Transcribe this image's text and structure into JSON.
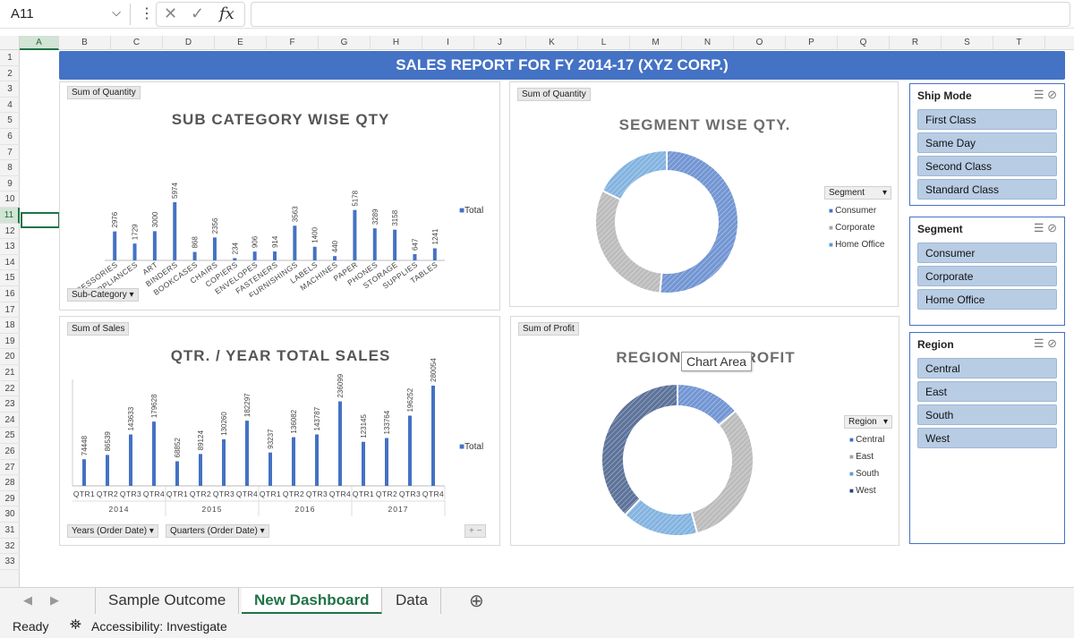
{
  "formula_bar": {
    "name_box": "A11",
    "fx": "fx",
    "formula": ""
  },
  "columns": [
    "A",
    "B",
    "C",
    "D",
    "E",
    "F",
    "G",
    "H",
    "I",
    "J",
    "K",
    "L",
    "M",
    "N",
    "O",
    "P",
    "Q",
    "R",
    "S",
    "T"
  ],
  "rows": [
    "1",
    "2",
    "3",
    "4",
    "5",
    "6",
    "7",
    "8",
    "9",
    "10",
    "11",
    "12",
    "13",
    "14",
    "15",
    "16",
    "17",
    "18",
    "19",
    "20",
    "21",
    "22",
    "23",
    "24",
    "25",
    "26",
    "27",
    "28",
    "29",
    "30",
    "31",
    "32",
    "33"
  ],
  "selected_cell": "A11",
  "banner": "SALES REPORT FOR FY 2014-17 (XYZ CORP.)",
  "chart_data": [
    {
      "type": "bar",
      "value_button": "Sum of Quantity",
      "title": "SUB CATEGORY WISE QTY",
      "categories": [
        "ACCESSORIES",
        "APPLIANCES",
        "ART",
        "BINDERS",
        "BOOKCASES",
        "CHAIRS",
        "COPIERS",
        "ENVELOPES",
        "FASTENERS",
        "FURNISHINGS",
        "LABELS",
        "MACHINES",
        "PAPER",
        "PHONES",
        "STORAGE",
        "SUPPLIES",
        "TABLES"
      ],
      "series": [
        {
          "name": "Total",
          "values": [
            2976,
            1729,
            3000,
            5974,
            868,
            2356,
            234,
            906,
            914,
            3563,
            1400,
            440,
            5178,
            3289,
            3158,
            647,
            1241
          ]
        }
      ],
      "field_button": "Sub-Category",
      "color": "#4472c4",
      "legend_placement": "right"
    },
    {
      "type": "pie",
      "value_button": "Sum of Quantity",
      "title": "SEGMENT WISE QTY.",
      "legend_title": "Segment",
      "categories": [
        "Consumer",
        "Corporate",
        "Home Office"
      ],
      "values": [
        19521,
        11608,
        6742
      ],
      "colors": [
        "#4472c4",
        "#a5a5a5",
        "#5b9bd5"
      ],
      "legend_placement": "right"
    },
    {
      "type": "bar",
      "value_button": "Sum of Sales",
      "title": "QTR. / YEAR TOTAL SALES",
      "categories": [
        "QTR1",
        "QTR2",
        "QTR3",
        "QTR4",
        "QTR1",
        "QTR2",
        "QTR3",
        "QTR4",
        "QTR1",
        "QTR2",
        "QTR3",
        "QTR4",
        "QTR1",
        "QTR2",
        "QTR3",
        "QTR4"
      ],
      "groups": [
        "2014",
        "2015",
        "2016",
        "2017"
      ],
      "series": [
        {
          "name": "Total",
          "values": [
            74448,
            86539,
            143633,
            179628,
            68852,
            89124,
            130260,
            182297,
            93237,
            136082,
            143787,
            236099,
            123145,
            133764,
            196252,
            280054
          ]
        }
      ],
      "field_buttons": [
        "Years (Order Date)",
        "Quarters (Order Date)"
      ],
      "color": "#4472c4",
      "legend_placement": "right"
    },
    {
      "type": "pie",
      "value_button": "Sum of Profit",
      "title": "REGION WISE PROFIT",
      "legend_title": "Region",
      "categories": [
        "Central",
        "East",
        "South",
        "West"
      ],
      "values": [
        39706,
        91523,
        46749,
        108418
      ],
      "colors": [
        "#4472c4",
        "#a5a5a5",
        "#5b9bd5",
        "#264478"
      ],
      "legend_placement": "right"
    }
  ],
  "slicers": [
    {
      "title": "Ship Mode",
      "items": [
        "First Class",
        "Same Day",
        "Second Class",
        "Standard Class"
      ]
    },
    {
      "title": "Segment",
      "items": [
        "Consumer",
        "Corporate",
        "Home Office"
      ]
    },
    {
      "title": "Region",
      "items": [
        "Central",
        "East",
        "South",
        "West"
      ]
    }
  ],
  "tooltip": "Chart Area",
  "sheet_tabs": {
    "tabs": [
      "Sample Outcome",
      "New Dashboard",
      "Data"
    ],
    "active": "New Dashboard",
    "add": "⊕"
  },
  "status_bar": {
    "ready": "Ready",
    "accessibility": "Accessibility: Investigate"
  },
  "pivot_zoom": {
    "plus": "+",
    "minus": "−"
  }
}
